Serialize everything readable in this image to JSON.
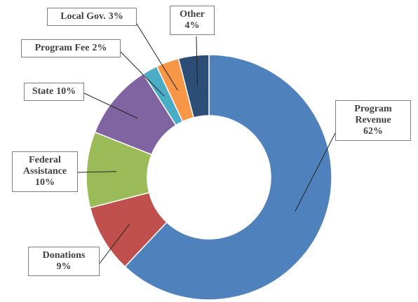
{
  "chart_data": {
    "type": "donut",
    "categories": [
      "Program Revenue",
      "Donations",
      "Federal Assistance",
      "State",
      "Program Fee",
      "Local Gov.",
      "Other"
    ],
    "values": [
      62,
      9,
      10,
      10,
      2,
      3,
      4
    ],
    "value_labels": [
      "62%",
      "9%",
      "10%",
      "10%",
      "2%",
      "3%",
      "4%"
    ],
    "colors": [
      "#4f81bd",
      "#c0504d",
      "#9bbb59",
      "#8064a2",
      "#4bacc6",
      "#f79646",
      "#2c4d75"
    ]
  }
}
